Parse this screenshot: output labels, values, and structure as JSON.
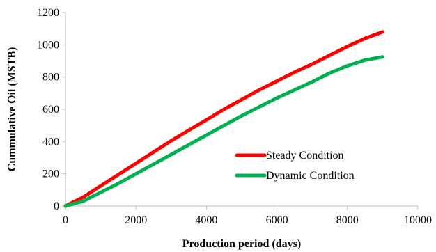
{
  "chart_data": {
    "type": "line",
    "xlabel": "Production period (days)",
    "ylabel": "Cummulative Oil (MSTB)",
    "xlim": [
      0,
      10000
    ],
    "ylim": [
      0,
      1200
    ],
    "x_ticks": [
      0,
      2000,
      4000,
      6000,
      8000,
      10000
    ],
    "y_ticks": [
      0,
      200,
      400,
      600,
      800,
      1000,
      1200
    ],
    "x_tick_labels": [
      "0",
      "2000",
      "4000",
      "6000",
      "8000",
      "10000"
    ],
    "y_tick_labels": [
      "0",
      "200",
      "400",
      "600",
      "800",
      "1000",
      "1200"
    ],
    "grid": false,
    "legend_position": "right",
    "series": [
      {
        "name": "Steady Condition",
        "color": "#ff0000",
        "x": [
          0,
          500,
          1000,
          1500,
          2000,
          2500,
          3000,
          3500,
          4000,
          4500,
          5000,
          5500,
          6000,
          6500,
          7000,
          7500,
          8000,
          8500,
          9000
        ],
        "y": [
          0,
          55,
          125,
          195,
          265,
          335,
          405,
          470,
          535,
          600,
          660,
          720,
          775,
          830,
          880,
          935,
          990,
          1040,
          1080
        ]
      },
      {
        "name": "Dynamic Condition",
        "color": "#00b050",
        "x": [
          0,
          500,
          1000,
          1500,
          2000,
          2500,
          3000,
          3500,
          4000,
          4500,
          5000,
          5500,
          6000,
          6500,
          7000,
          7500,
          8000,
          8500,
          9000
        ],
        "y": [
          0,
          30,
          85,
          140,
          200,
          260,
          320,
          380,
          440,
          500,
          560,
          615,
          670,
          720,
          770,
          825,
          870,
          905,
          925
        ]
      }
    ]
  }
}
